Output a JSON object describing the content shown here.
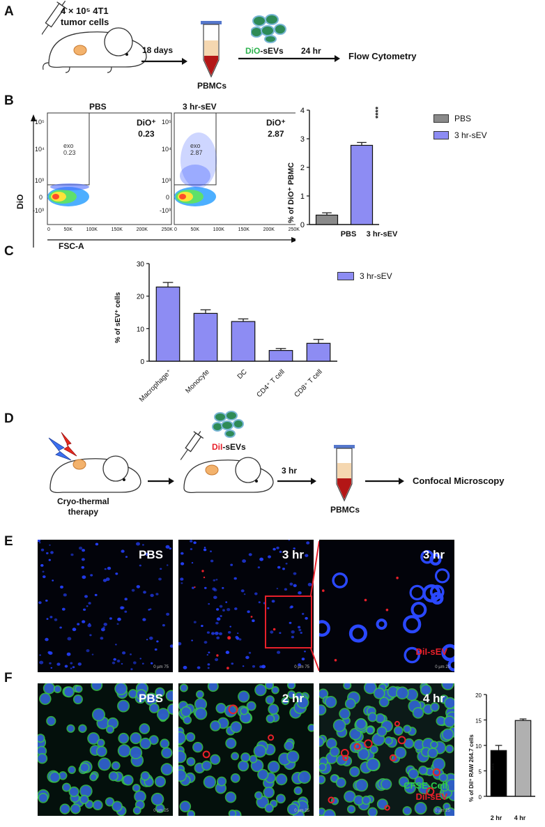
{
  "panels": {
    "A": {
      "letter": "A",
      "cells_line1": "4 × 10⁵ 4T1",
      "cells_line2": "tumor cells",
      "days": "18 days",
      "pbmcs": "PBMCs",
      "sevs_prefix": "DiO",
      "sevs_suffix": "-sEVs",
      "time": "24 hr",
      "readout": "Flow Cytometry"
    },
    "B": {
      "letter": "B",
      "plots": [
        {
          "title": "PBS",
          "gate_label": "DiO⁺",
          "gate_value": "0.23",
          "inner_name": "exo",
          "inner_value": "0.23"
        },
        {
          "title": "3 hr-sEV",
          "gate_label": "DiO⁺",
          "gate_value": "2.87",
          "inner_name": "exo",
          "inner_value": "2.87"
        }
      ],
      "y_axis_label": "DiO",
      "x_axis_label": "FSC-A",
      "y_ticks": [
        "10⁵",
        "10⁴",
        "10³",
        "0",
        "-10³"
      ],
      "x_ticks": [
        "0",
        "50K",
        "100K",
        "150K",
        "200K",
        "250K"
      ],
      "legend": [
        "PBS",
        "3 hr-sEV"
      ],
      "significance": "****"
    },
    "C": {
      "letter": "C",
      "legend": "3 hr-sEV"
    },
    "D": {
      "letter": "D",
      "therapy_line1": "Cryo-thermal",
      "therapy_line2": "therapy",
      "sevs_prefix": "DiI",
      "sevs_suffix": "-sEVs",
      "time": "3 hr",
      "pbmcs": "PBMCs",
      "readout": "Confocal Microscopy"
    },
    "E": {
      "letter": "E",
      "images": [
        {
          "label": "PBS",
          "scale": "0  µm  75"
        },
        {
          "label": "3 hr",
          "scale": "0  µm  75"
        },
        {
          "label": "3 hr",
          "scale": "0  µm  25",
          "stain": "DiI-sEV"
        }
      ]
    },
    "F": {
      "letter": "F",
      "images": [
        {
          "label": "PBS",
          "scale": "0  µm  25"
        },
        {
          "label": "2 hr",
          "scale": "0  µm  25"
        },
        {
          "label": "4 hr",
          "scale": "0  µm  25",
          "stain1": "CFSE-Cell",
          "stain2": "DiI-sEV"
        }
      ],
      "significance": "***"
    }
  },
  "colors": {
    "bar_blue": "#8d8cf3",
    "bar_gray": "#8a8a8a",
    "dio_green": "#2bb24c",
    "dii_red": "#e8202a",
    "nucleus_blue": "#2440ff"
  },
  "chart_data": [
    {
      "type": "bar",
      "panel": "B",
      "categories": [
        "PBS",
        "3 hr-sEV"
      ],
      "values": [
        0.33,
        2.77
      ],
      "errors": [
        0.08,
        0.1
      ],
      "colors": [
        "#8a8a8a",
        "#8d8cf3"
      ],
      "ylabel": "% of DiO⁺ PBMC",
      "ylim": [
        0,
        4
      ],
      "yticks": [
        0,
        1,
        2,
        3,
        4
      ],
      "legend": [
        "PBS",
        "3 hr-sEV"
      ],
      "legend_position": "right"
    },
    {
      "type": "bar",
      "panel": "C",
      "categories": [
        "Macrophage⁺",
        "Monocyte",
        "DC",
        "CD4⁺ T cell",
        "CD8⁺ T cell"
      ],
      "values": [
        22.8,
        14.7,
        12.2,
        3.3,
        5.5
      ],
      "errors": [
        1.4,
        1.1,
        0.8,
        0.6,
        1.2
      ],
      "ylabel": "% of sEV⁺ cells",
      "ylim": [
        0,
        30
      ],
      "yticks": [
        0,
        10,
        20,
        30
      ],
      "legend": [
        "3 hr-sEV"
      ],
      "legend_position": "right"
    },
    {
      "type": "bar",
      "panel": "F",
      "categories": [
        "2 hr",
        "4 hr"
      ],
      "values": [
        9.0,
        14.9
      ],
      "errors": [
        1.0,
        0.3
      ],
      "colors": [
        "#000000",
        "#b0b0b0"
      ],
      "ylabel": "% of DiI⁺ RAW 264.7 cells",
      "ylim": [
        0,
        20
      ],
      "yticks": [
        0,
        5,
        10,
        15,
        20
      ]
    }
  ]
}
